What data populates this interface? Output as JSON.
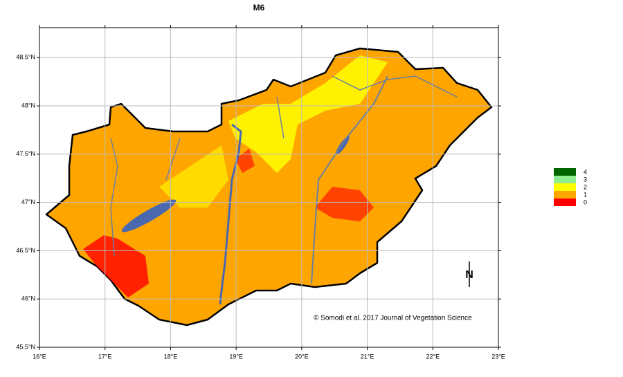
{
  "chart_data": {
    "type": "map",
    "title": "M6",
    "xlim": [
      16,
      23
    ],
    "ylim": [
      45.5,
      48.81
    ],
    "xticks": [
      {
        "value": 16,
        "label": "16°E"
      },
      {
        "value": 17,
        "label": "17°E"
      },
      {
        "value": 18,
        "label": "18°E"
      },
      {
        "value": 19,
        "label": "19°E"
      },
      {
        "value": 20,
        "label": "20°E"
      },
      {
        "value": 21,
        "label": "21°E"
      },
      {
        "value": 22,
        "label": "22°E"
      },
      {
        "value": 23,
        "label": "23°E"
      }
    ],
    "yticks": [
      {
        "value": 45.5,
        "label": "45.5°N"
      },
      {
        "value": 46,
        "label": "46°N"
      },
      {
        "value": 46.5,
        "label": "46.5°N"
      },
      {
        "value": 47,
        "label": "47°N"
      },
      {
        "value": 47.5,
        "label": "47.5°N"
      },
      {
        "value": 48,
        "label": "48°N"
      },
      {
        "value": 48.5,
        "label": "48.5°N"
      }
    ],
    "grid": true,
    "legend": [
      {
        "name": "4",
        "color": "#006400"
      },
      {
        "name": "3",
        "color": "#90ee90"
      },
      {
        "name": "2",
        "color": "#ffff00"
      },
      {
        "name": "1",
        "color": "#ffa500"
      },
      {
        "name": "0",
        "color": "#ff0000"
      }
    ],
    "north_label": "N",
    "credit": "© Somodi et al. 2017 Journal of Vegetation Science"
  }
}
